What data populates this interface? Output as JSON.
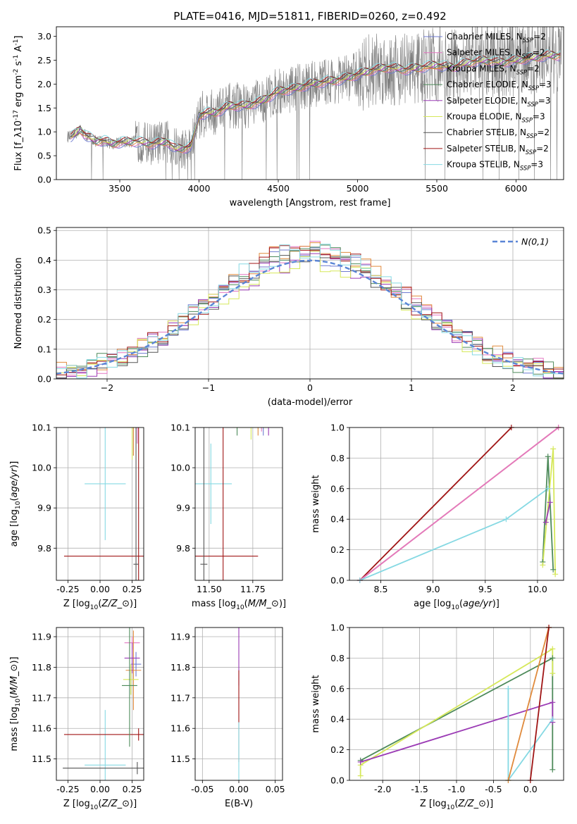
{
  "title": "PLATE=0416, MJD=51811, FIBERID=0260, z=0.492",
  "colors": {
    "Chabrier MILES": "#6f7bd1",
    "Salpeter MILES": "#e377c2",
    "Kroupa MILES": "#e08a3c",
    "Chabrier ELODIE": "#4d8a5a",
    "Salpeter ELODIE": "#9b3bb5",
    "Kroupa ELODIE": "#d6e85a",
    "Chabrier STELIB": "#555555",
    "Salpeter STELIB": "#a01515",
    "Kroupa STELIB": "#86d9e3",
    "data": "#7f7f7f",
    "normal": "#5b86d6"
  },
  "chart_data": [
    {
      "type": "line",
      "id": "spectrum",
      "xlabel": "wavelength [Angstrom, rest frame]",
      "ylabel": "Flux [f$_\\lambda$10$^{-17}$ erg cm$^{-2}$ s$^{-1}$ A$^{-1}$]",
      "xlim": [
        3100,
        6300
      ],
      "ylim": [
        0,
        3.2
      ],
      "xticks": [
        3500,
        4000,
        4500,
        5000,
        5500,
        6000
      ],
      "yticks": [
        0.0,
        0.5,
        1.0,
        1.5,
        2.0,
        2.5,
        3.0
      ],
      "grid": false,
      "legend_position": "top-right",
      "legend": [
        "Chabrier MILES, N$_{SSP}$=2",
        "Salpeter MILES, N$_{SSP}$=2",
        "Kroupa MILES, N$_{SSP}$=2",
        "Chabrier ELODIE, N$_{SSP}$=3",
        "Salpeter ELODIE, N$_{SSP}$=3",
        "Kroupa ELODIE, N$_{SSP}$=3",
        "Chabrier STELIB, N$_{SSP}$=2",
        "Salpeter STELIB, N$_{SSP}$=2",
        "Kroupa STELIB, N$_{SSP}$=3"
      ],
      "model_x": [
        3200,
        3250,
        3280,
        3300,
        3350,
        3400,
        3450,
        3500,
        3600,
        3700,
        3800,
        3850,
        3900,
        3950,
        4000,
        4050,
        4100,
        4200,
        4300,
        4400,
        4500,
        4600,
        4700,
        4800,
        4900,
        5000,
        5100,
        5200,
        5300,
        5400,
        5500,
        5600,
        5700,
        5800,
        5900,
        6000,
        6100,
        6200
      ],
      "model_y": [
        0.9,
        1.05,
        0.95,
        0.9,
        0.8,
        0.82,
        0.75,
        0.78,
        0.8,
        0.75,
        0.8,
        0.65,
        0.65,
        0.7,
        1.35,
        1.4,
        1.4,
        1.55,
        1.55,
        1.65,
        1.85,
        1.9,
        2.0,
        2.05,
        2.1,
        2.2,
        2.3,
        2.35,
        2.3,
        2.35,
        2.4,
        2.35,
        2.45,
        2.5,
        2.45,
        2.5,
        2.55,
        2.6
      ]
    },
    {
      "type": "line",
      "id": "residuals",
      "xlabel": "(data-model)/error",
      "ylabel": "Normed distribution",
      "xlim": [
        -2.5,
        2.5
      ],
      "ylim": [
        0,
        0.51
      ],
      "xticks": [
        -2,
        -1,
        0,
        1,
        2
      ],
      "yticks": [
        0.0,
        0.1,
        0.2,
        0.3,
        0.4,
        0.5
      ],
      "grid": true,
      "legend_position": "top-right",
      "legend": [
        "$\\mathcal{N}(0,1)$"
      ],
      "bin_width": 0.1
    },
    {
      "type": "scatter",
      "id": "Z-vs-age",
      "xlabel": "Z [log$_{10}$($Z/Z_\\odot$)]",
      "ylabel": "age  [log$_{10}$($age/yr$)]",
      "xlim": [
        -0.34,
        0.34
      ],
      "ylim": [
        9.72,
        10.1
      ],
      "xticks": [
        -0.25,
        0.0,
        0.25
      ],
      "yticks": [
        9.8,
        9.9,
        10.0,
        10.1
      ],
      "grid": true,
      "points": [
        {
          "model": "Kroupa STELIB",
          "x": 0.04,
          "y": 9.96,
          "xerr": 0.16,
          "yerr": 0.14
        },
        {
          "model": "Salpeter STELIB",
          "x": 0.3,
          "y": 9.78,
          "xerr": 0.58,
          "yerr": 0.32
        },
        {
          "model": "Chabrier STELIB",
          "x": 0.28,
          "y": 9.76,
          "xerr": 0.02,
          "yerr": 0.34
        },
        {
          "model": "Salpeter MILES",
          "x": 0.29,
          "y": 10.11,
          "xerr": 0.03,
          "yerr": 0.05
        },
        {
          "model": "Kroupa ELODIE",
          "x": 0.25,
          "y": 10.1,
          "xerr": 0.04,
          "yerr": 0.08
        },
        {
          "model": "Salpeter ELODIE",
          "x": 0.25,
          "y": 10.11,
          "xerr": 0.02,
          "yerr": 0.01
        },
        {
          "model": "Chabrier MILES",
          "x": 0.26,
          "y": 10.11,
          "xerr": 0.02,
          "yerr": 0.08
        },
        {
          "model": "Kroupa MILES",
          "x": 0.26,
          "y": 10.11,
          "xerr": 0.02,
          "yerr": 0.08
        }
      ]
    },
    {
      "type": "scatter",
      "id": "mass-vs-age",
      "xlabel": "mass [log$_{10}$($M/M_\\odot$)]",
      "ylabel": "",
      "xlim": [
        11.42,
        11.92
      ],
      "ylim": [
        9.72,
        10.1
      ],
      "xticks": [
        11.5,
        11.75
      ],
      "yticks": [
        9.8,
        9.9,
        10.0,
        10.1
      ],
      "grid": true,
      "points": [
        {
          "model": "Kroupa STELIB",
          "x": 11.51,
          "y": 9.96,
          "xerr": 0.12,
          "yerr": 0.1
        },
        {
          "model": "Salpeter STELIB",
          "x": 11.58,
          "y": 9.78,
          "xerr": 0.2,
          "yerr": 0.32
        },
        {
          "model": "Chabrier STELIB",
          "x": 11.47,
          "y": 9.76,
          "xerr": 0.02,
          "yerr": 0.34
        },
        {
          "model": "Salpeter MILES",
          "x": 11.8,
          "y": 10.11,
          "xerr": 0.1,
          "yerr": 0.02
        },
        {
          "model": "Kroupa ELODIE",
          "x": 11.74,
          "y": 10.1,
          "xerr": 0.1,
          "yerr": 0.03
        },
        {
          "model": "Chabrier ELODIE",
          "x": 11.66,
          "y": 10.11,
          "xerr": 0.06,
          "yerr": 0.03
        },
        {
          "model": "Salpeter ELODIE",
          "x": 11.84,
          "y": 10.11,
          "xerr": 0.06,
          "yerr": 0.03
        },
        {
          "model": "Kroupa MILES",
          "x": 11.78,
          "y": 10.11,
          "xerr": 0.06,
          "yerr": 0.03
        },
        {
          "model": "Chabrier MILES",
          "x": 11.81,
          "y": 10.11,
          "xerr": 0.04,
          "yerr": 0.03
        }
      ]
    },
    {
      "type": "line",
      "id": "age-vs-mass-weight",
      "xlabel": "age  [log$_{10}$($age/yr$)]",
      "ylabel": "mass weight",
      "xlim": [
        8.2,
        10.25
      ],
      "ylim": [
        0,
        1.0
      ],
      "xticks": [
        8.5,
        9.0,
        9.5,
        10.0
      ],
      "yticks": [
        0.0,
        0.2,
        0.4,
        0.6,
        0.8,
        1.0
      ],
      "grid": true,
      "series": [
        {
          "model": "Salpeter STELIB",
          "x": [
            8.3,
            9.75
          ],
          "y": [
            0.0,
            1.0
          ]
        },
        {
          "model": "Kroupa MILES",
          "x": [
            8.3,
            10.2
          ],
          "y": [
            0.0,
            1.0
          ]
        },
        {
          "model": "Salpeter MILES",
          "x": [
            8.3,
            10.2
          ],
          "y": [
            0.0,
            1.0
          ]
        },
        {
          "model": "Kroupa STELIB",
          "x": [
            8.3,
            9.7,
            10.1
          ],
          "y": [
            0.0,
            0.4,
            0.6
          ]
        },
        {
          "model": "Chabrier ELODIE",
          "x": [
            10.05,
            10.1,
            10.15
          ],
          "y": [
            0.12,
            0.81,
            0.07
          ]
        },
        {
          "model": "Kroupa ELODIE",
          "x": [
            10.05,
            10.15,
            10.17
          ],
          "y": [
            0.1,
            0.86,
            0.04
          ]
        },
        {
          "model": "Salpeter ELODIE",
          "x": [
            10.08,
            10.12
          ],
          "y": [
            0.38,
            0.51
          ]
        }
      ]
    },
    {
      "type": "scatter",
      "id": "Z-vs-mass",
      "xlabel": "Z [log$_{10}$($Z/Z_\\odot$)]",
      "ylabel": "mass [log$_{10}$($M/M_\\odot$)]",
      "xlim": [
        -0.34,
        0.34
      ],
      "ylim": [
        11.43,
        11.93
      ],
      "xticks": [
        -0.25,
        0.0,
        0.25
      ],
      "yticks": [
        11.5,
        11.6,
        11.7,
        11.8,
        11.9
      ],
      "grid": true,
      "points": [
        {
          "model": "Kroupa STELIB",
          "x": 0.04,
          "y": 11.48,
          "xerr": 0.16,
          "yerr": 0.18
        },
        {
          "model": "Salpeter STELIB",
          "x": 0.3,
          "y": 11.58,
          "xerr": 0.58,
          "yerr": 0.02
        },
        {
          "model": "Chabrier STELIB",
          "x": 0.29,
          "y": 11.47,
          "xerr": 0.58,
          "yerr": 0.02
        },
        {
          "model": "Salpeter MILES",
          "x": 0.25,
          "y": 11.88,
          "xerr": 0.06,
          "yerr": 0.02
        },
        {
          "model": "Chabrier MILES",
          "x": 0.28,
          "y": 11.81,
          "xerr": 0.04,
          "yerr": 0.04
        },
        {
          "model": "Kroupa MILES",
          "x": 0.26,
          "y": 11.79,
          "xerr": 0.06,
          "yerr": 0.13
        },
        {
          "model": "Salpeter ELODIE",
          "x": 0.25,
          "y": 11.83,
          "xerr": 0.06,
          "yerr": 0.05
        },
        {
          "model": "Kroupa ELODIE",
          "x": 0.24,
          "y": 11.76,
          "xerr": 0.06,
          "yerr": 0.05
        },
        {
          "model": "Chabrier ELODIE",
          "x": 0.23,
          "y": 11.74,
          "xerr": 0.06,
          "yerr": 0.2
        }
      ]
    },
    {
      "type": "scatter",
      "id": "ebv-vs-mass",
      "xlabel": "E(B-V)",
      "ylabel": "",
      "xlim": [
        -0.06,
        0.06
      ],
      "ylim": [
        11.43,
        11.93
      ],
      "xticks": [
        -0.05,
        0.0,
        0.05
      ],
      "yticks": [
        11.5,
        11.6,
        11.7,
        11.8,
        11.9
      ],
      "grid": true,
      "points": [
        {
          "model": "Salpeter ELODIE",
          "x": 0.0,
          "y": 11.84,
          "xerr": 0.0,
          "yerr": 0.1
        },
        {
          "model": "Salpeter STELIB",
          "x": 0.0,
          "y": 11.64,
          "xerr": 0.0,
          "yerr": 0.15
        },
        {
          "model": "Kroupa STELIB",
          "x": 0.0,
          "y": 11.52,
          "xerr": 0.0,
          "yerr": 0.1
        }
      ]
    },
    {
      "type": "line",
      "id": "Z-vs-mass-weight",
      "xlabel": "Z [log$_{10}$($Z/Z_\\odot$)]",
      "ylabel": "mass weight",
      "xlim": [
        -2.45,
        0.45
      ],
      "ylim": [
        0,
        1.0
      ],
      "xticks": [
        -2.0,
        -1.5,
        -1.0,
        -0.5,
        0.0
      ],
      "yticks": [
        0.0,
        0.2,
        0.4,
        0.6,
        0.8,
        1.0
      ],
      "grid": true,
      "series": [
        {
          "model": "Chabrier ELODIE",
          "x": [
            -2.3,
            0.3,
            0.3
          ],
          "y": [
            0.13,
            0.8,
            0.07
          ]
        },
        {
          "model": "Kroupa ELODIE",
          "x": [
            -2.3,
            -2.3,
            0.3,
            0.3
          ],
          "y": [
            0.03,
            0.1,
            0.86,
            0.7
          ]
        },
        {
          "model": "Salpeter ELODIE",
          "x": [
            -2.3,
            0.3,
            0.3
          ],
          "y": [
            0.12,
            0.51,
            0.38
          ]
        },
        {
          "model": "Kroupa STELIB",
          "x": [
            -0.3,
            -0.3,
            0.3
          ],
          "y": [
            0.6,
            0.0,
            0.4
          ]
        },
        {
          "model": "Kroupa MILES",
          "x": [
            -0.3,
            0.25
          ],
          "y": [
            0.0,
            1.0
          ]
        },
        {
          "model": "Salpeter STELIB",
          "x": [
            0.0,
            0.25
          ],
          "y": [
            0.0,
            1.0
          ]
        }
      ]
    }
  ]
}
